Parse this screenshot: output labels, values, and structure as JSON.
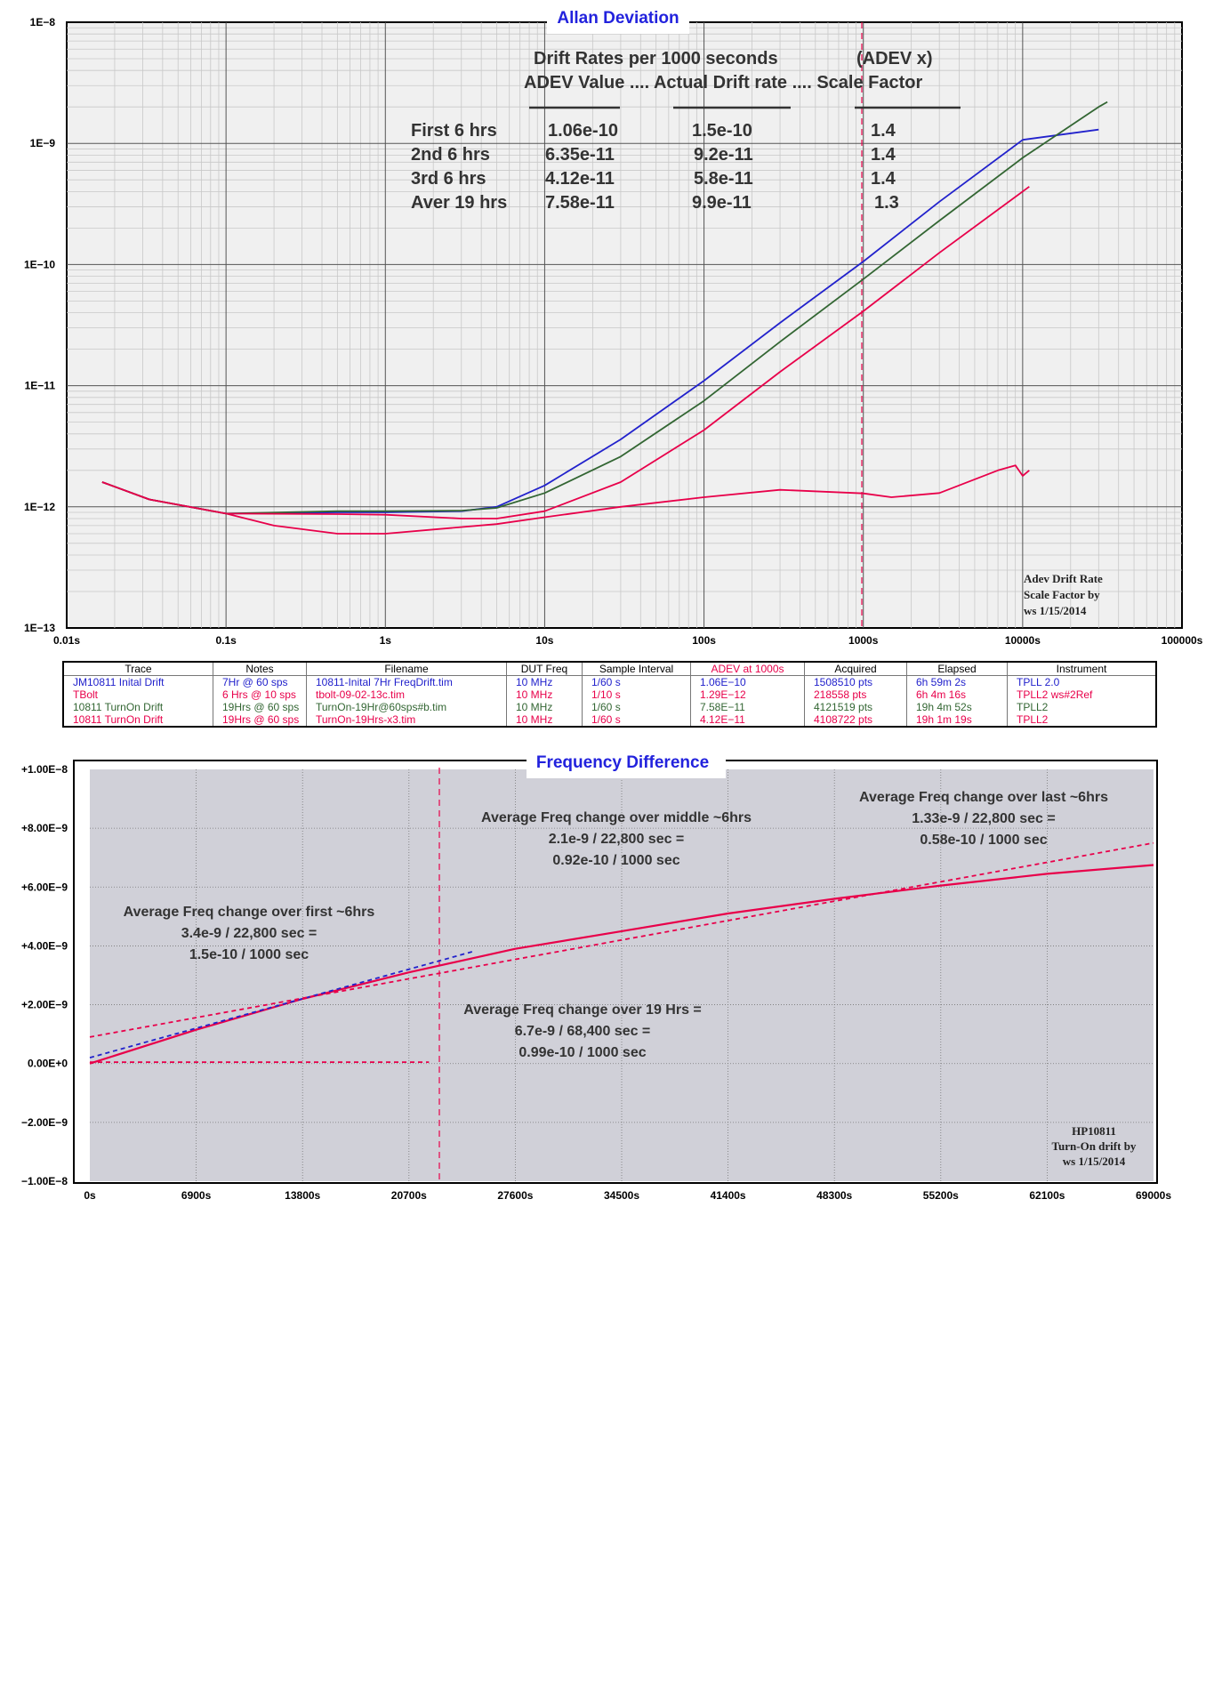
{
  "adev_chart": {
    "title": "Allan Deviation",
    "y_ticks": [
      "1E−8",
      "1E−9",
      "1E−10",
      "1E−11",
      "1E−12",
      "1E−13"
    ],
    "x_ticks": [
      "0.01s",
      "0.1s",
      "1s",
      "10s",
      "100s",
      "1000s",
      "10000s",
      "100000s"
    ],
    "header1": "Drift Rates per 1000 seconds",
    "header1b": "(ADEV x)",
    "header2": "ADEV Value .... Actual Drift rate  .... Scale Factor",
    "rows": [
      {
        "label": "First 6 hrs",
        "adev": "1.06e-10",
        "drift": "1.5e-10",
        "scale": "1.4"
      },
      {
        "label": "2nd 6 hrs",
        "adev": "6.35e-11",
        "drift": "9.2e-11",
        "scale": "1.4"
      },
      {
        "label": "3rd  6 hrs",
        "adev": "4.12e-11",
        "drift": "5.8e-11",
        "scale": "1.4"
      },
      {
        "label": "Aver 19 hrs",
        "adev": "7.58e-11",
        "drift": "9.9e-11",
        "scale": "1.3"
      }
    ],
    "note_lines": [
      "Adev Drift Rate",
      "Scale Factor by",
      "ws 1/15/2014"
    ]
  },
  "legend": {
    "headers": [
      "Trace",
      "Notes",
      "Filename",
      "DUT Freq",
      "Sample Interval",
      "ADEV at 1000s",
      "Acquired",
      "Elapsed",
      "Instrument"
    ],
    "rows": [
      {
        "color": "#2222cc",
        "cells": [
          "JM10811 Inital Drift",
          "7Hr @ 60 sps",
          "10811-Inital 7Hr FreqDrift.tim",
          "10 MHz",
          "1/60 s",
          "1.06E−10",
          "1508510 pts",
          "6h 59m 2s",
          "TPLL 2.0"
        ]
      },
      {
        "color": "#e8004a",
        "cells": [
          "TBolt",
          "6 Hrs @ 10 sps",
          "tbolt-09-02-13c.tim",
          "10 MHz",
          "1/10 s",
          "1.29E−12",
          "218558 pts",
          "6h 4m 16s",
          "TPLL2 ws#2Ref"
        ]
      },
      {
        "color": "#336633",
        "cells": [
          "10811 TurnOn Drift",
          "19Hrs @ 60 sps",
          "TurnOn-19Hr@60sps#b.tim",
          "10 MHz",
          "1/60 s",
          "7.58E−11",
          "4121519 pts",
          "19h 4m 52s",
          "TPLL2"
        ]
      },
      {
        "color": "#e8004a",
        "cells": [
          "10811 TurnOn Drift",
          "19Hrs @ 60 sps",
          "TurnOn-19Hrs-x3.tim",
          "10 MHz",
          "1/60 s",
          "4.12E−11",
          "4108722 pts",
          "19h 1m 19s",
          "TPLL2"
        ]
      }
    ]
  },
  "freq_chart": {
    "title": "Frequency Difference",
    "y_ticks": [
      "+1.00E−8",
      "+8.00E−9",
      "+6.00E−9",
      "+4.00E−9",
      "+2.00E−9",
      "0.00E+0",
      "−2.00E−9",
      "−1.00E−8"
    ],
    "x_ticks": [
      "0s",
      "6900s",
      "13800s",
      "20700s",
      "27600s",
      "34500s",
      "41400s",
      "48300s",
      "55200s",
      "62100s",
      "69000s"
    ],
    "ann_middle": [
      "Average Freq change over middle ~6hrs",
      "2.1e-9 / 22,800 sec =",
      "0.92e-10 / 1000 sec"
    ],
    "ann_last": [
      "Average Freq change over last ~6hrs",
      "1.33e-9 / 22,800 sec =",
      "0.58e-10 / 1000 sec"
    ],
    "ann_first": [
      "Average Freq change over first ~6hrs",
      "3.4e-9 / 22,800 sec =",
      "1.5e-10 / 1000 sec"
    ],
    "ann_19": [
      "Average Freq change over 19 Hrs =",
      "6.7e-9 / 68,400 sec =",
      "0.99e-10 / 1000 sec"
    ],
    "note_lines": [
      "HP10811",
      "Turn-On drift  by",
      "ws 1/15/2014"
    ]
  },
  "chart_data": [
    {
      "type": "line",
      "title": "Allan Deviation",
      "xscale": "log",
      "yscale": "log",
      "xlim": [
        0.01,
        100000
      ],
      "ylim": [
        1e-13,
        1e-08
      ],
      "grid": true,
      "marker_tau_s": 1000,
      "series": [
        {
          "name": "JM10811 Inital Drift",
          "color": "#2222cc",
          "x": [
            0.0167,
            0.033,
            0.1,
            0.5,
            1,
            3,
            5,
            10,
            30,
            100,
            300,
            1000,
            3000,
            10000,
            30000
          ],
          "y": [
            1.6e-12,
            1.15e-12,
            8.8e-13,
            9e-13,
            9e-13,
            9.2e-13,
            1e-12,
            1.5e-12,
            3.6e-12,
            1.1e-11,
            3.3e-11,
            1.06e-10,
            3.3e-10,
            1.07e-09,
            1.3e-09
          ]
        },
        {
          "name": "TBolt",
          "color": "#e8004a",
          "x": [
            0.0167,
            0.033,
            0.1,
            0.2,
            0.5,
            1,
            2,
            5,
            10,
            30,
            100,
            300,
            1000,
            1500,
            3000,
            7000,
            9000,
            10000,
            11000
          ],
          "y": [
            1.6e-12,
            1.15e-12,
            8.8e-13,
            7e-13,
            6e-13,
            6e-13,
            6.5e-13,
            7.2e-13,
            8.2e-13,
            1e-12,
            1.2e-12,
            1.38e-12,
            1.29e-12,
            1.2e-12,
            1.3e-12,
            2e-12,
            2.2e-12,
            1.8e-12,
            2e-12
          ]
        },
        {
          "name": "10811 TurnOn Drift",
          "color": "#336633",
          "x": [
            0.0167,
            0.033,
            0.1,
            0.5,
            1,
            3,
            5,
            10,
            30,
            100,
            300,
            1000,
            3000,
            10000,
            30000,
            34000
          ],
          "y": [
            1.6e-12,
            1.15e-12,
            8.8e-13,
            9.2e-13,
            9.2e-13,
            9.3e-13,
            9.8e-13,
            1.3e-12,
            2.6e-12,
            7.5e-12,
            2.3e-11,
            7.58e-11,
            2.3e-10,
            7.6e-10,
            2e-09,
            2.2e-09
          ]
        },
        {
          "name": "10811 TurnOn Drift",
          "color": "#e8004a",
          "x": [
            0.0167,
            0.033,
            0.1,
            0.5,
            1,
            3,
            5,
            10,
            30,
            100,
            300,
            1000,
            3000,
            11000
          ],
          "y": [
            1.6e-12,
            1.15e-12,
            8.8e-13,
            8.7e-13,
            8.6e-13,
            8e-13,
            8e-13,
            9.2e-13,
            1.6e-12,
            4.3e-12,
            1.3e-11,
            4.12e-11,
            1.25e-10,
            4.4e-10
          ]
        }
      ]
    },
    {
      "type": "line",
      "title": "Frequency Difference",
      "xlim": [
        0,
        69000
      ],
      "ylim": [
        -1e-08,
        1e-08
      ],
      "grid": true,
      "marker_x_s": 22800,
      "series": [
        {
          "color": "#e8004a",
          "style": "solid",
          "x": [
            0,
            6900,
            13800,
            20700,
            27600,
            34500,
            41400,
            48300,
            55200,
            62100,
            69000
          ],
          "y": [
            0,
            1.15e-09,
            2.2e-09,
            3.1e-09,
            3.9e-09,
            4.5e-09,
            5.1e-09,
            5.6e-09,
            6.05e-09,
            6.45e-09,
            6.75e-09
          ]
        },
        {
          "color": "#2222cc",
          "style": "dashed",
          "x": [
            0,
            24800
          ],
          "y": [
            2e-10,
            3.8e-09
          ]
        },
        {
          "color": "#e8004a",
          "style": "dashed",
          "x": [
            0,
            69000
          ],
          "y": [
            9e-10,
            7.5e-09
          ]
        },
        {
          "color": "#e8004a",
          "style": "dashed",
          "x": [
            0,
            22000
          ],
          "y": [
            5e-11,
            5e-11
          ]
        }
      ]
    }
  ]
}
